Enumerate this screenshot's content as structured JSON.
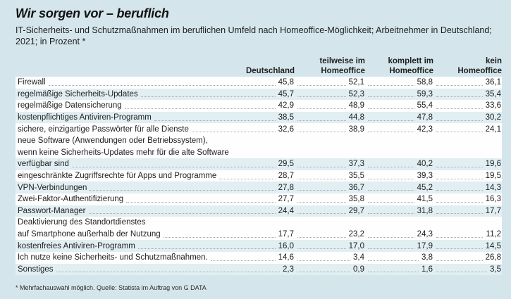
{
  "title": "Wir sorgen vor – beruflich",
  "subtitle": "IT-Sicherheits- und Schutzmaßnahmen im beruflichen Umfeld nach Homeoffice-Möglichkeit; Arbeitnehmer in Deutschland; 2021; in Prozent *",
  "footnote": "* Mehrfachauswahl möglich. Quelle: Statista im Auftrag von G DATA",
  "colors": {
    "page_bg": "#d4e6ec",
    "stripe_blue": "#e1eef2",
    "stripe_white": "#fefefe",
    "text": "#1e1e1e",
    "dots": "#9fadb2"
  },
  "columns": {
    "c1": {
      "line1": "",
      "line2": "Deutschland"
    },
    "c2": {
      "line1": "teilweise im",
      "line2": "Homeoffice"
    },
    "c3": {
      "line1": "komplett im",
      "line2": "Homeoffice"
    },
    "c4": {
      "line1": "kein",
      "line2": "Homeoffice"
    }
  },
  "lines": [
    {
      "type": "data",
      "band": "white",
      "label": "Firewall",
      "v1": "45,8",
      "v2": "52,1",
      "v3": "58,8",
      "v4": "36,1"
    },
    {
      "type": "data",
      "band": "blue",
      "label": "regelmäßige Sicherheits-Updates",
      "v1": "45,7",
      "v2": "52,3",
      "v3": "59,3",
      "v4": "35,4"
    },
    {
      "type": "data",
      "band": "white",
      "label": "regelmäßige Datensicherung",
      "v1": "42,9",
      "v2": "48,9",
      "v3": "55,4",
      "v4": "33,6"
    },
    {
      "type": "data",
      "band": "blue",
      "label": "kostenpflichtiges Antiviren-Programm",
      "v1": "38,5",
      "v2": "44,8",
      "v3": "47,8",
      "v4": "30,2"
    },
    {
      "type": "data",
      "band": "white",
      "label": "sichere, einzigartige Passwörter für alle Dienste",
      "v1": "32,6",
      "v2": "38,9",
      "v3": "42,3",
      "v4": "24,1"
    },
    {
      "type": "header",
      "band": "white",
      "label": "neue Software (Anwendungen oder Betriebssystem),"
    },
    {
      "type": "header",
      "band": "white",
      "label": "wenn keine Sicherheits-Updates mehr für die alte Software"
    },
    {
      "type": "data",
      "band": "blue",
      "label": "verfügbar sind",
      "v1": "29,5",
      "v2": "37,3",
      "v3": "40,2",
      "v4": "19,6"
    },
    {
      "type": "data",
      "band": "white",
      "label": "eingeschränkte Zugriffsrechte für Apps und Programme",
      "v1": "28,7",
      "v2": "35,5",
      "v3": "39,3",
      "v4": "19,5"
    },
    {
      "type": "data",
      "band": "blue",
      "label": "VPN-Verbindungen",
      "v1": "27,8",
      "v2": "36,7",
      "v3": "45,2",
      "v4": "14,3"
    },
    {
      "type": "data",
      "band": "white",
      "label": "Zwei-Faktor-Authentifizierung",
      "v1": "27,7",
      "v2": "35,8",
      "v3": "41,5",
      "v4": "16,3"
    },
    {
      "type": "data",
      "band": "blue",
      "label": "Passwort-Manager",
      "v1": "24,4",
      "v2": "29,7",
      "v3": "31,8",
      "v4": "17,7"
    },
    {
      "type": "header",
      "band": "white",
      "label": "Deaktivierung des Standortdienstes"
    },
    {
      "type": "data",
      "band": "white",
      "label": "auf Smartphone außerhalb der Nutzung",
      "v1": "17,7",
      "v2": "23,2",
      "v3": "24,3",
      "v4": "11,2"
    },
    {
      "type": "data",
      "band": "blue",
      "label": "kostenfreies Antiviren-Programm",
      "v1": "16,0",
      "v2": "17,0",
      "v3": "17,9",
      "v4": "14,5"
    },
    {
      "type": "data",
      "band": "white",
      "label": "Ich nutze keine Sicherheits- und Schutzmaßnahmen.",
      "v1": "14,6",
      "v2": "3,4",
      "v3": "3,8",
      "v4": "26,8"
    },
    {
      "type": "data",
      "band": "blue",
      "label": "Sonstiges",
      "v1": "2,3",
      "v2": "0,9",
      "v3": "1,6",
      "v4": "3,5"
    }
  ],
  "chart_data": {
    "type": "table",
    "title": "Wir sorgen vor – beruflich",
    "subtitle": "IT-Sicherheits- und Schutzmaßnahmen im beruflichen Umfeld nach Homeoffice-Möglichkeit; Arbeitnehmer in Deutschland; 2021; in Prozent",
    "unit": "Prozent",
    "categories": [
      "Firewall",
      "regelmäßige Sicherheits-Updates",
      "regelmäßige Datensicherung",
      "kostenpflichtiges Antiviren-Programm",
      "sichere, einzigartige Passwörter für alle Dienste",
      "neue Software (Anwendungen oder Betriebssystem), wenn keine Sicherheits-Updates mehr für die alte Software verfügbar sind",
      "eingeschränkte Zugriffsrechte für Apps und Programme",
      "VPN-Verbindungen",
      "Zwei-Faktor-Authentifizierung",
      "Passwort-Manager",
      "Deaktivierung des Standortdienstes auf Smartphone außerhalb der Nutzung",
      "kostenfreies Antiviren-Programm",
      "Ich nutze keine Sicherheits- und Schutzmaßnahmen.",
      "Sonstiges"
    ],
    "series": [
      {
        "name": "Deutschland",
        "values": [
          45.8,
          45.7,
          42.9,
          38.5,
          32.6,
          29.5,
          28.7,
          27.8,
          27.7,
          24.4,
          17.7,
          16.0,
          14.6,
          2.3
        ]
      },
      {
        "name": "teilweise im Homeoffice",
        "values": [
          52.1,
          52.3,
          48.9,
          44.8,
          38.9,
          37.3,
          35.5,
          36.7,
          35.8,
          29.7,
          23.2,
          17.0,
          3.4,
          0.9
        ]
      },
      {
        "name": "komplett im Homeoffice",
        "values": [
          58.8,
          59.3,
          55.4,
          47.8,
          42.3,
          40.2,
          39.3,
          45.2,
          41.5,
          31.8,
          24.3,
          17.9,
          3.8,
          1.6
        ]
      },
      {
        "name": "kein Homeoffice",
        "values": [
          36.1,
          35.4,
          33.6,
          30.2,
          24.1,
          19.6,
          19.5,
          14.3,
          16.3,
          17.7,
          11.2,
          14.5,
          26.8,
          3.5
        ]
      }
    ],
    "source": "Statista im Auftrag von G DATA",
    "note": "Mehrfachauswahl möglich"
  }
}
